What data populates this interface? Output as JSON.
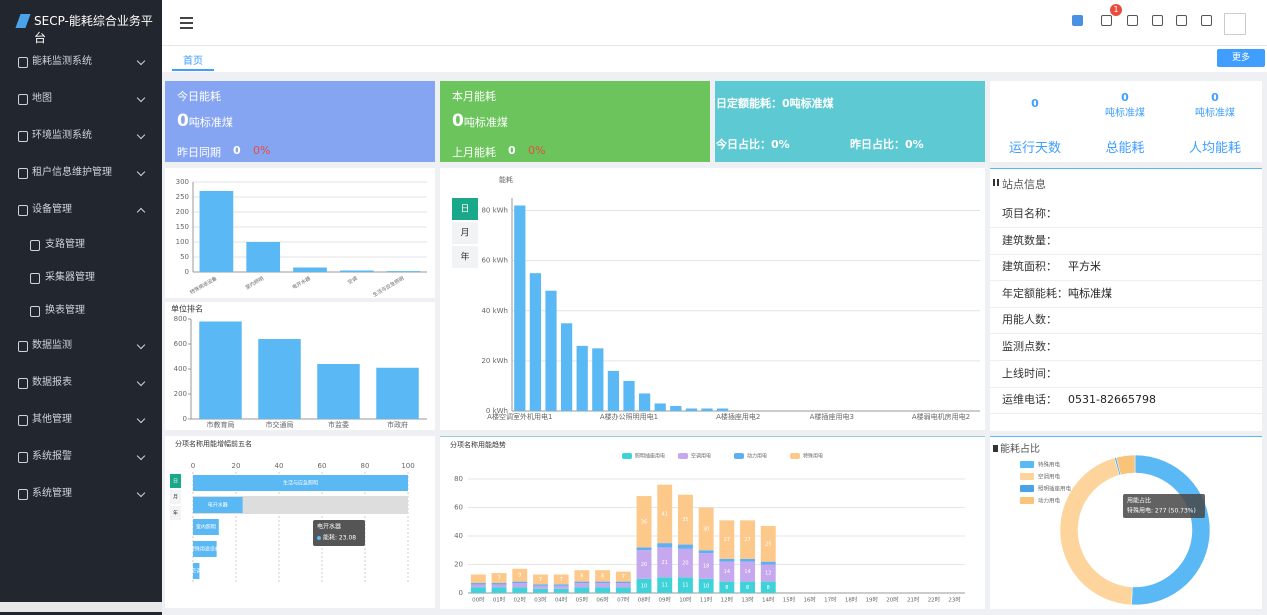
{
  "sidebar": {
    "title": "SECP-能耗综合业务平台",
    "menu": [
      {
        "label": "能耗监测系统"
      },
      {
        "label": "地图"
      },
      {
        "label": "环境监测系统"
      },
      {
        "label": "租户信息维护管理"
      },
      {
        "label": "设备管理",
        "expanded": true,
        "children": [
          "支路管理",
          "采集器管理",
          "换表管理"
        ]
      },
      {
        "label": "数据监测"
      },
      {
        "label": "数据报表"
      },
      {
        "label": "其他管理"
      },
      {
        "label": "系统报警"
      },
      {
        "label": "系统管理"
      }
    ]
  },
  "topbar": {
    "notifications": 1
  },
  "tabs": {
    "active": "首页",
    "more": "更多"
  },
  "cards": [
    {
      "title": "今日能耗",
      "value": 0,
      "unit": "吨标准煤",
      "compare_label": "昨日同期",
      "compare_value": 0,
      "change": "0%"
    },
    {
      "title": "本月能耗",
      "value": 0,
      "unit": "吨标准煤",
      "compare_label": "上月能耗",
      "compare_value": 0,
      "change": "0%"
    },
    {
      "quota": "日定额能耗：0吨标准煤",
      "today": "今日占比：0%",
      "yesterday": "昨日占比：0%"
    }
  ],
  "summary": [
    {
      "value": 0,
      "label": "运行天数"
    },
    {
      "value": 0,
      "unit": "吨标准煤",
      "label": "总能耗"
    },
    {
      "value": 0,
      "unit": "吨标准煤",
      "label": "人均能耗"
    }
  ],
  "station": {
    "title": "站点信息",
    "rows": [
      {
        "label": "项目名称："
      },
      {
        "label": "建筑数量："
      },
      {
        "label": "建筑面积：",
        "value": "平方米"
      },
      {
        "label": "年定额能耗：",
        "value": "吨标准煤"
      },
      {
        "label": "用能人数："
      },
      {
        "label": "监测点数："
      },
      {
        "label": "上线时间："
      },
      {
        "label": "运维电话：",
        "value": "0531-82665798"
      }
    ]
  },
  "chart_data": [
    {
      "type": "bar",
      "categories": [
        "特殊用途设备",
        "室内照明",
        "电开水器",
        "空调",
        "生活与应急照明"
      ],
      "values": [
        270,
        100,
        15,
        5,
        3
      ],
      "ylim": [
        0,
        300
      ],
      "yticks": [
        0,
        50,
        100,
        150,
        200,
        250,
        300
      ],
      "color": "#5ab8f5",
      "grid": true,
      "rotate_labels": true
    },
    {
      "type": "bar",
      "title": "单位排名",
      "categories": [
        "市教育局",
        "市交通局",
        "市监委",
        "市政府"
      ],
      "values": [
        780,
        640,
        440,
        410
      ],
      "ylim": [
        0,
        800
      ],
      "yticks": [
        0,
        200,
        400,
        600,
        800
      ],
      "color": "#5ab8f5",
      "grid": false
    },
    {
      "type": "bar",
      "y_label": "能耗",
      "buttons": [
        "日",
        "月",
        "年"
      ],
      "categories": [
        "A楼空调室外机用电1",
        null,
        null,
        null,
        null,
        null,
        null,
        "A楼办公照明用电1",
        null,
        null,
        null,
        null,
        null,
        null,
        "A楼插座用电2",
        null,
        null,
        null,
        null,
        null,
        "A楼插座用电3",
        null,
        null,
        null,
        null,
        null,
        null,
        "A楼弱电机房用电2",
        null,
        null
      ],
      "values": [
        82,
        55,
        48,
        35,
        26,
        25,
        16,
        12,
        7,
        3,
        2,
        1,
        1,
        1,
        0,
        0,
        0,
        0,
        0,
        0,
        0,
        0,
        0,
        0,
        0,
        0,
        0,
        0,
        0,
        0
      ],
      "ylim": [
        0,
        85
      ],
      "yticks": [
        {
          "value": 0,
          "label": "0 kWh"
        },
        {
          "value": 20,
          "label": "20 kWh"
        },
        {
          "value": 40,
          "label": "40 kWh"
        },
        {
          "value": 60,
          "label": "60 kWh"
        },
        {
          "value": 80,
          "label": "80 kWh"
        }
      ],
      "color": "#5ab8f5",
      "grid": true
    },
    {
      "type": "hbar",
      "title": "分项名称用能增幅前五名",
      "buttons": [
        "日",
        "月",
        "年"
      ],
      "categories": [
        "生活与应急照明",
        "电开水器",
        "室内照明",
        "特殊用途设备",
        "空调"
      ],
      "values": [
        100,
        23.08,
        12,
        11,
        3
      ],
      "xlim": [
        0,
        100
      ],
      "xticks": [
        0,
        20,
        40,
        60,
        80,
        100
      ],
      "color": "#5ab8f5",
      "tooltip": {
        "title": "电开水器",
        "label": "能耗: 23.08"
      }
    },
    {
      "type": "stacked",
      "title": "分项名称用能趋势",
      "categories": [
        "00时",
        "01时",
        "02时",
        "03时",
        "04时",
        "05时",
        "06时",
        "07时",
        "08时",
        "09时",
        "10时",
        "11时",
        "12时",
        "13时",
        "14时",
        "15时",
        "16时",
        "17时",
        "18时",
        "19时",
        "20时",
        "21时",
        "22时",
        "23时"
      ],
      "ylim": [
        0,
        80
      ],
      "yticks": [
        0,
        20,
        40,
        60,
        80
      ],
      "grid": true,
      "series": [
        {
          "name": "照明插座用电",
          "color": "#3fd2d9",
          "values": [
            4,
            4,
            4,
            3,
            3,
            4,
            4,
            4,
            10,
            11,
            11,
            10,
            8,
            8,
            8,
            0,
            0,
            0,
            0,
            0,
            0,
            0,
            0,
            0
          ]
        },
        {
          "name": "空调用电",
          "color": "#c6a8ee",
          "values": [
            2,
            2,
            3,
            2,
            2,
            3,
            3,
            3,
            20,
            21,
            20,
            18,
            14,
            14,
            12,
            0,
            0,
            0,
            0,
            0,
            0,
            0,
            0,
            0
          ]
        },
        {
          "name": "动力用电",
          "color": "#5fb0f2",
          "values": [
            1,
            1,
            1,
            1,
            1,
            1,
            1,
            1,
            2,
            3,
            3,
            2,
            2,
            2,
            2,
            0,
            0,
            0,
            0,
            0,
            0,
            0,
            0,
            0
          ]
        },
        {
          "name": "特殊用电",
          "color": "#fcc98b",
          "values": [
            6,
            7,
            9,
            7,
            7,
            8,
            8,
            7,
            36,
            41,
            35,
            30,
            27,
            27,
            25,
            0,
            0,
            0,
            0,
            0,
            0,
            0,
            0,
            0
          ]
        }
      ]
    },
    {
      "type": "donut",
      "title": "能耗占比",
      "categories": [
        "特殊用电",
        "空调用电",
        "照明插座用电",
        "动力用电"
      ],
      "values": [
        277,
        245,
        2,
        22
      ],
      "colors": [
        "#5ab8f5",
        "#fdd59c",
        "#4aa3e8",
        "#f9c47a"
      ],
      "tooltip": {
        "title": "用能占比",
        "label": "特殊用电: 277 (50.73%)"
      }
    }
  ]
}
